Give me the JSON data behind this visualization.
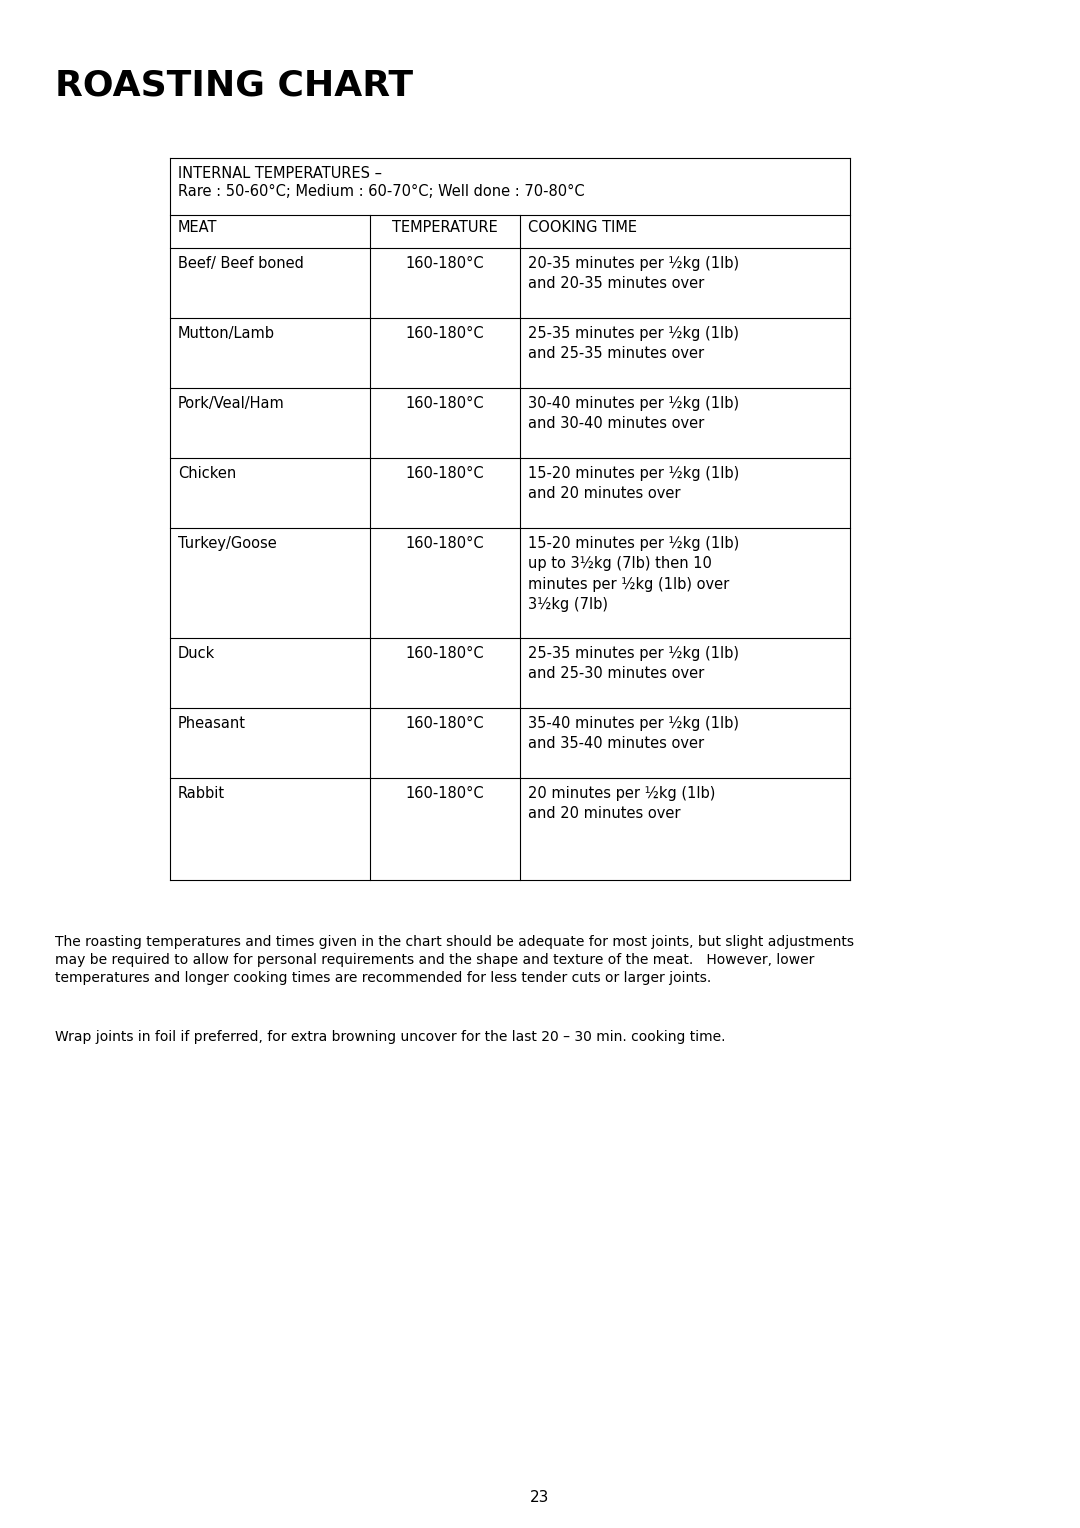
{
  "title": "ROASTING CHART",
  "title_fontsize": 26,
  "title_fontweight": "bold",
  "bg_color": "#ffffff",
  "table_header_internal": "INTERNAL TEMPERATURES –",
  "table_header_rare": "Rare : 50-60°C; Medium : 60-70°C; Well done : 70-80°C",
  "col_headers": [
    "MEAT",
    "TEMPERATURE",
    "COOKING TIME"
  ],
  "rows": [
    [
      "Beef/ Beef boned",
      "160-180°C",
      "20-35 minutes per ½kg (1lb)\nand 20-35 minutes over"
    ],
    [
      "Mutton/Lamb",
      "160-180°C",
      "25-35 minutes per ½kg (1lb)\nand 25-35 minutes over"
    ],
    [
      "Pork/Veal/Ham",
      "160-180°C",
      "30-40 minutes per ½kg (1lb)\nand 30-40 minutes over"
    ],
    [
      "Chicken",
      "160-180°C",
      "15-20 minutes per ½kg (1lb)\nand 20 minutes over"
    ],
    [
      "Turkey/Goose",
      "160-180°C",
      "15-20 minutes per ½kg (1lb)\nup to 3½kg (7lb) then 10\nminutes per ½kg (1lb) over\n3½kg (7lb)"
    ],
    [
      "Duck",
      "160-180°C",
      "25-35 minutes per ½kg (1lb)\nand 25-30 minutes over"
    ],
    [
      "Pheasant",
      "160-180°C",
      "35-40 minutes per ½kg (1lb)\nand 35-40 minutes over"
    ],
    [
      "Rabbit",
      "160-180°C",
      "20 minutes per ½kg (1lb)\nand 20 minutes over"
    ]
  ],
  "footnote1_line1": "The roasting temperatures and times given in the chart should be adequate for most joints, but slight adjustments",
  "footnote1_line2": "may be required to allow for personal requirements and the shape and texture of the meat.   However, lower",
  "footnote1_line3": "temperatures and longer cooking times are recommended for less tender cuts or larger joints.",
  "footnote2": "Wrap joints in foil if preferred, for extra browning uncover for the last 20 – 30 min. cooking time.",
  "page_number": "23",
  "text_fontsize": 10.5,
  "header_fontsize": 10.5,
  "footnote_fontsize": 10.0
}
